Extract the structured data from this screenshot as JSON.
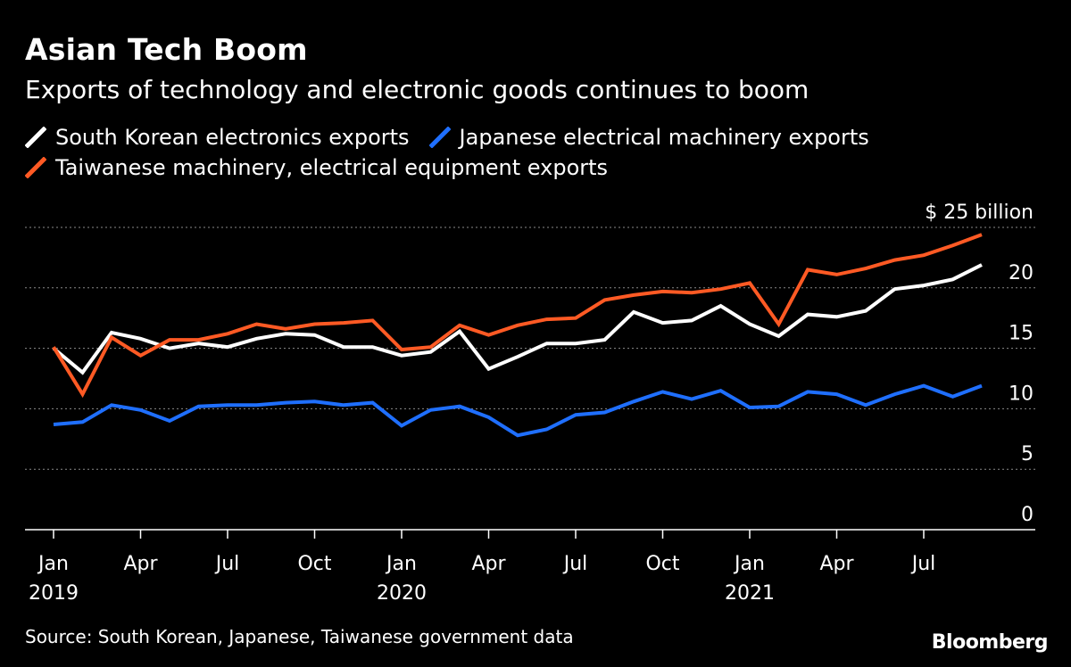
{
  "header": {
    "title": "Asian Tech Boom",
    "subtitle": "Exports of technology and electronic goods continues to boom"
  },
  "footer": {
    "source": "Source: South Korean, Japanese, Taiwanese government data",
    "brand": "Bloomberg"
  },
  "colors": {
    "background": "#000000",
    "south_korea": "#ffffff",
    "japan": "#1f6fff",
    "taiwan": "#ff5a24",
    "grid": "#8a8a8a"
  },
  "chart_data": {
    "type": "line",
    "title": "Asian Tech Boom",
    "subtitle": "Exports of technology and electronic goods continues to boom",
    "xlabel": "",
    "ylabel": "$ billion",
    "ylim": [
      0,
      25
    ],
    "y_ticks": [
      0,
      5,
      10,
      15,
      20,
      25
    ],
    "y_tick_labels": [
      "0",
      "5",
      "10",
      "15",
      "20",
      "$ 25 billion"
    ],
    "grid": true,
    "legend_position": "top-left",
    "x": [
      "2019-01",
      "2019-02",
      "2019-03",
      "2019-04",
      "2019-05",
      "2019-06",
      "2019-07",
      "2019-08",
      "2019-09",
      "2019-10",
      "2019-11",
      "2019-12",
      "2020-01",
      "2020-02",
      "2020-03",
      "2020-04",
      "2020-05",
      "2020-06",
      "2020-07",
      "2020-08",
      "2020-09",
      "2020-10",
      "2020-11",
      "2020-12",
      "2021-01",
      "2021-02",
      "2021-03",
      "2021-04",
      "2021-05",
      "2021-06",
      "2021-07",
      "2021-08",
      "2021-09"
    ],
    "x_ticks": [
      {
        "index": 0,
        "label": "Jan",
        "year": "2019"
      },
      {
        "index": 3,
        "label": "Apr",
        "year": ""
      },
      {
        "index": 6,
        "label": "Jul",
        "year": ""
      },
      {
        "index": 9,
        "label": "Oct",
        "year": ""
      },
      {
        "index": 12,
        "label": "Jan",
        "year": "2020"
      },
      {
        "index": 15,
        "label": "Apr",
        "year": ""
      },
      {
        "index": 18,
        "label": "Jul",
        "year": ""
      },
      {
        "index": 21,
        "label": "Oct",
        "year": ""
      },
      {
        "index": 24,
        "label": "Jan",
        "year": "2021"
      },
      {
        "index": 27,
        "label": "Apr",
        "year": ""
      },
      {
        "index": 30,
        "label": "Jul",
        "year": ""
      }
    ],
    "series": [
      {
        "name": "South Korean electronics exports",
        "color": "#ffffff",
        "values": [
          15.0,
          13.0,
          16.3,
          15.8,
          15.0,
          15.4,
          15.1,
          15.8,
          16.2,
          16.1,
          15.1,
          15.1,
          14.4,
          14.7,
          16.4,
          13.3,
          14.3,
          15.4,
          15.4,
          15.7,
          18.0,
          17.1,
          17.3,
          18.5,
          17.0,
          16.0,
          17.8,
          17.6,
          18.1,
          19.9,
          20.2,
          20.7,
          21.9
        ]
      },
      {
        "name": "Japanese electrical machinery exports",
        "color": "#1f6fff",
        "values": [
          8.7,
          8.9,
          10.3,
          9.9,
          9.0,
          10.2,
          10.3,
          10.3,
          10.5,
          10.6,
          10.3,
          10.5,
          8.6,
          9.9,
          10.2,
          9.3,
          7.8,
          8.3,
          9.5,
          9.7,
          10.6,
          11.4,
          10.8,
          11.5,
          10.1,
          10.2,
          11.4,
          11.2,
          10.3,
          11.2,
          11.9,
          11.0,
          11.9
        ]
      },
      {
        "name": "Taiwanese machinery, electrical equipment exports",
        "color": "#ff5a24",
        "values": [
          15.1,
          11.2,
          15.9,
          14.4,
          15.7,
          15.7,
          16.2,
          17.0,
          16.6,
          17.0,
          17.1,
          17.3,
          14.9,
          15.1,
          16.9,
          16.1,
          16.9,
          17.4,
          17.5,
          19.0,
          19.4,
          19.7,
          19.6,
          19.9,
          20.4,
          17.0,
          21.5,
          21.1,
          21.6,
          22.3,
          22.7,
          23.5,
          24.4
        ]
      }
    ]
  }
}
